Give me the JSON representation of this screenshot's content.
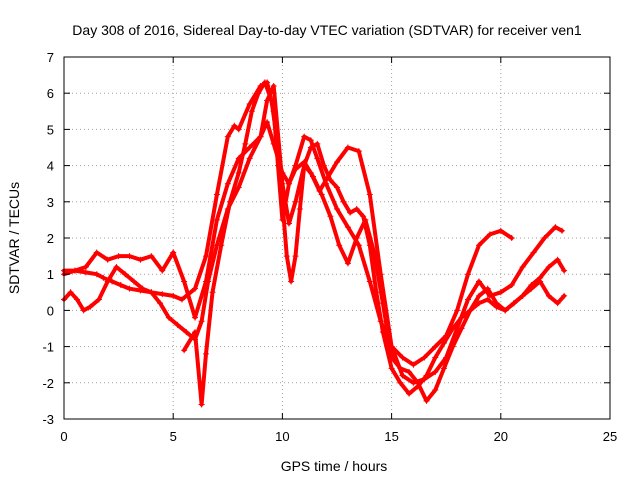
{
  "chart_data": {
    "type": "scatter",
    "title": "Day 308 of 2016, Sidereal Day-to-day VTEC variation (SDTVAR) for receiver ven1",
    "xlabel": "GPS time / hours",
    "ylabel": "SDTVAR / TECUs",
    "xlim": [
      0,
      25
    ],
    "ylim": [
      -3,
      7
    ],
    "xticks": [
      "0",
      "5",
      "10",
      "15",
      "20",
      "25"
    ],
    "yticks": [
      "-3",
      "-2",
      "-1",
      "0",
      "1",
      "2",
      "3",
      "4",
      "5",
      "6",
      "7"
    ],
    "grid": true,
    "marker": "+",
    "color": "#ff0000",
    "series": [
      {
        "x": [
          0,
          0.5,
          1.0,
          1.5,
          1.8,
          2.2,
          2.6,
          3.0,
          3.5,
          4.0,
          4.5,
          5.0,
          5.4,
          6.0,
          6.5,
          7.0,
          7.5,
          7.8,
          8.0,
          8.5,
          9.0,
          9.3,
          9.6,
          9.8,
          10.0,
          10.3,
          10.6,
          11.0,
          11.3,
          11.6,
          12.0,
          12.5,
          13.0,
          13.5,
          14.0,
          14.5,
          15.0,
          15.5,
          16.0,
          16.5,
          17.0,
          17.5,
          18.0,
          18.5,
          19.0,
          19.5,
          20.0,
          20.5
        ],
        "y": [
          1.0,
          1.1,
          1.05,
          1.0,
          0.9,
          0.8,
          0.7,
          0.6,
          0.55,
          0.5,
          0.45,
          0.4,
          0.3,
          0.6,
          1.5,
          3.2,
          4.8,
          5.1,
          5.0,
          5.7,
          6.2,
          6.3,
          5.5,
          4.0,
          2.5,
          3.5,
          4.0,
          4.8,
          4.7,
          4.2,
          3.5,
          2.8,
          2.3,
          1.8,
          0.8,
          -0.3,
          -1.0,
          -1.3,
          -1.5,
          -1.3,
          -1.0,
          -0.7,
          0.0,
          1.0,
          1.8,
          2.1,
          2.2,
          2.0
        ]
      },
      {
        "x": [
          0,
          0.5,
          1.0,
          1.5,
          2.0,
          2.5,
          3.0,
          3.5,
          4.0,
          4.5,
          5.0,
          5.5,
          6.0,
          6.5,
          7.0,
          7.5,
          8.0,
          8.5,
          9.0,
          9.3,
          9.6,
          10.0,
          10.3,
          10.6,
          11.0,
          11.3,
          11.7,
          12.0,
          12.5,
          13.0,
          13.5,
          14.0,
          14.5,
          15.0,
          15.5,
          16.0,
          16.5,
          17.0,
          17.5,
          18.0,
          18.5,
          19.0,
          19.5,
          20.0,
          20.5,
          21.0,
          21.5,
          22.0,
          22.5,
          22.8
        ],
        "y": [
          1.1,
          1.1,
          1.2,
          1.6,
          1.4,
          1.5,
          1.5,
          1.4,
          1.5,
          1.1,
          1.6,
          0.8,
          -0.2,
          0.8,
          2.5,
          3.5,
          4.2,
          4.5,
          4.8,
          5.8,
          6.2,
          3.5,
          2.4,
          3.0,
          4.0,
          3.8,
          3.3,
          3.6,
          4.1,
          4.5,
          4.4,
          3.2,
          1.0,
          -1.0,
          -1.8,
          -2.0,
          -1.9,
          -1.7,
          -1.3,
          -0.5,
          0.3,
          0.8,
          0.4,
          0.5,
          0.7,
          1.2,
          1.6,
          2.0,
          2.3,
          2.2
        ]
      },
      {
        "x": [
          0,
          0.3,
          0.6,
          0.9,
          1.2,
          1.6,
          2.0,
          2.4,
          2.8,
          3.2,
          3.6,
          4.0,
          4.4,
          4.8,
          5.2,
          5.6,
          6.0,
          6.3,
          6.6,
          7.0,
          7.5,
          8.0,
          8.5,
          9.0,
          9.3,
          9.6,
          10.0,
          10.3,
          10.6,
          11.0,
          11.4,
          11.8,
          12.2,
          12.6,
          13.0,
          13.4,
          13.8,
          14.2,
          14.6,
          15.0,
          15.4,
          15.8,
          16.2,
          16.6,
          17.0,
          17.4,
          17.8,
          18.2,
          18.6,
          19.0,
          19.4,
          19.8,
          20.2,
          20.6,
          21.0,
          21.4,
          21.8,
          22.2,
          22.6,
          22.9
        ],
        "y": [
          0.3,
          0.5,
          0.3,
          0.0,
          0.1,
          0.3,
          0.8,
          1.2,
          1.0,
          0.8,
          0.6,
          0.5,
          0.2,
          -0.2,
          -0.4,
          -0.6,
          -0.8,
          -0.3,
          0.8,
          1.8,
          2.8,
          3.4,
          4.2,
          4.8,
          5.2,
          4.6,
          3.8,
          3.5,
          3.9,
          4.1,
          3.7,
          3.2,
          2.6,
          1.8,
          1.3,
          2.0,
          2.5,
          1.6,
          0.2,
          -1.3,
          -1.6,
          -1.7,
          -2.0,
          -2.5,
          -2.2,
          -1.6,
          -1.0,
          -0.5,
          0.0,
          0.4,
          0.6,
          0.2,
          0.0,
          0.2,
          0.4,
          0.7,
          0.9,
          1.2,
          1.4,
          1.1
        ]
      },
      {
        "x": [
          5.5,
          6.0,
          6.3,
          6.5,
          6.8,
          7.2,
          7.6,
          8.0,
          8.3,
          8.6,
          8.9,
          9.2,
          9.5,
          9.8,
          10.0,
          10.2,
          10.4,
          10.6,
          10.8,
          11.0,
          11.3,
          11.6,
          11.9,
          12.2,
          12.5,
          12.8,
          13.1,
          13.4,
          13.7,
          14.0,
          14.3,
          14.6,
          15.0,
          15.4,
          15.8,
          16.2,
          16.6,
          17.0,
          17.4,
          17.8,
          18.2,
          18.6,
          19.0,
          19.4,
          19.8,
          20.2,
          20.6,
          21.0,
          21.4,
          21.8,
          22.2,
          22.6,
          22.9
        ],
        "y": [
          -1.1,
          -0.6,
          -2.6,
          -1.2,
          0.5,
          1.8,
          3.0,
          3.8,
          4.6,
          5.5,
          6.0,
          6.3,
          5.8,
          4.5,
          3.0,
          1.5,
          0.8,
          1.5,
          2.8,
          4.0,
          4.5,
          4.6,
          4.0,
          3.6,
          3.4,
          3.0,
          2.7,
          2.8,
          2.6,
          1.8,
          0.5,
          -0.6,
          -1.6,
          -2.0,
          -2.3,
          -2.1,
          -1.8,
          -1.3,
          -0.9,
          -0.5,
          -0.2,
          0.0,
          0.2,
          0.3,
          0.1,
          0.0,
          0.2,
          0.4,
          0.6,
          0.8,
          0.4,
          0.2,
          0.4
        ]
      }
    ]
  }
}
